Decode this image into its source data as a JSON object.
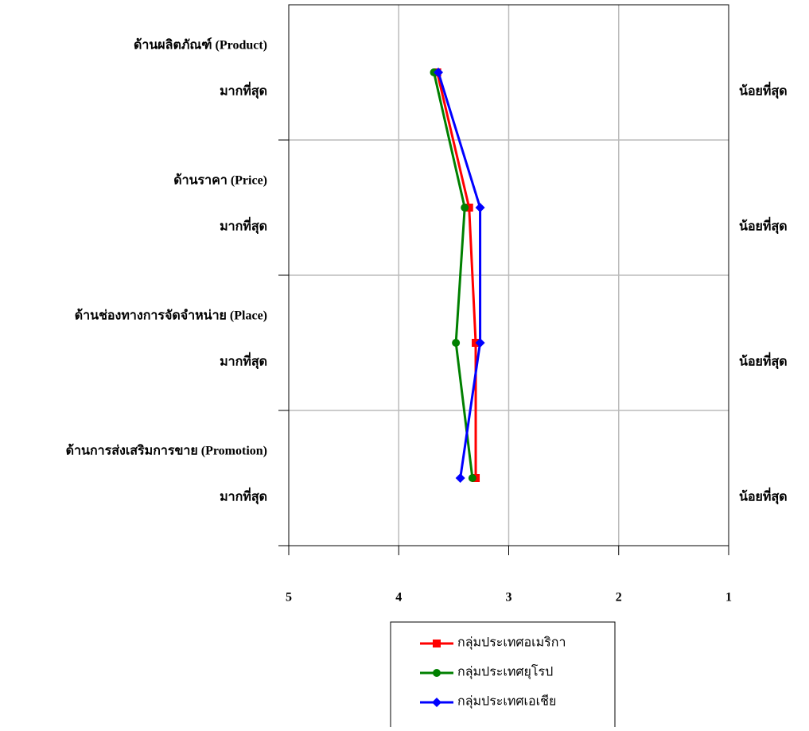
{
  "chart_data": {
    "type": "line",
    "orientation": "horizontal",
    "categories": [
      "ด้านผลิตภัณฑ์ (Product)",
      "ด้านราคา (Price)",
      "ด้านช่องทางการจัดจำหน่าย (Place)",
      "ด้านการส่งเสริมการขาย (Promotion)"
    ],
    "left_label": "มากที่สุด",
    "right_label": "น้อยที่สุด",
    "series": [
      {
        "name": "กลุ่มประเทศอเมริกา",
        "color": "#ff0000",
        "marker": "square",
        "values": [
          3.65,
          3.36,
          3.3,
          3.3
        ]
      },
      {
        "name": "กลุ่มประเทศยุโรป",
        "color": "#008000",
        "marker": "circle",
        "values": [
          3.68,
          3.4,
          3.48,
          3.33
        ]
      },
      {
        "name": "กลุ่มประเทศเอเชีย",
        "color": "#0000ff",
        "marker": "diamond",
        "values": [
          3.64,
          3.26,
          3.26,
          3.44
        ]
      }
    ],
    "xlim": [
      5,
      1
    ],
    "xticks": [
      5,
      4,
      3,
      2,
      1
    ],
    "grid": true,
    "legend": "bottom"
  }
}
